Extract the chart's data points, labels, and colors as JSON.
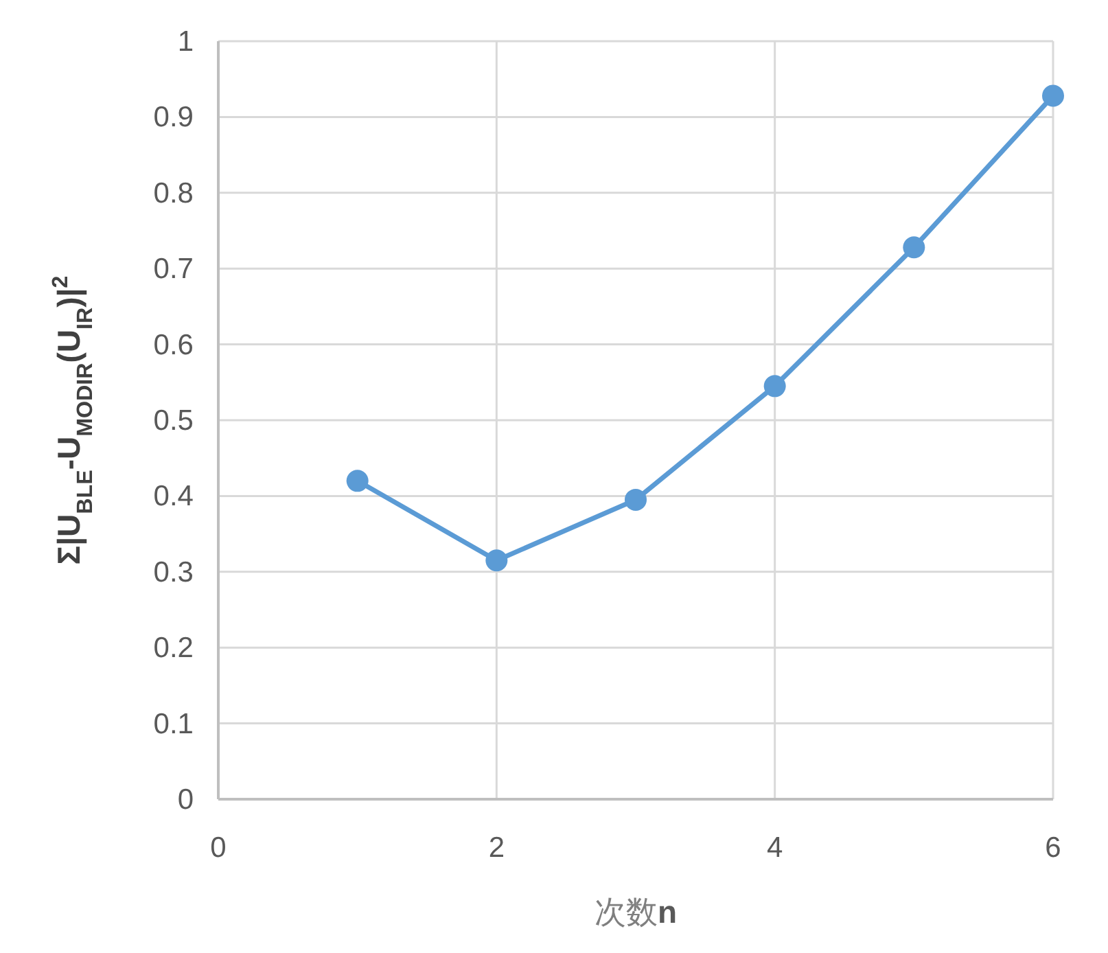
{
  "chart_data": {
    "type": "line",
    "xlabel": "次数**n**",
    "ylabel": "Σ|U$_{BLE}$-U$_{MODIR}$(U$_{IR}$)|$^{2}$",
    "x": [
      1,
      2,
      3,
      4,
      5,
      6
    ],
    "series": [
      {
        "color": "#5b9bd5",
        "values": [
          0.42,
          0.315,
          0.395,
          0.545,
          0.728,
          0.928
        ]
      }
    ],
    "xlim": [
      0,
      6
    ],
    "ylim": [
      0,
      1
    ],
    "xticks": [
      0,
      2,
      4,
      6
    ],
    "yticks": [
      0,
      0.1,
      0.2,
      0.3,
      0.4,
      0.5,
      0.6,
      0.7,
      0.8,
      0.9,
      1
    ],
    "grid": true,
    "marker": "circle",
    "line_style": "solid"
  }
}
